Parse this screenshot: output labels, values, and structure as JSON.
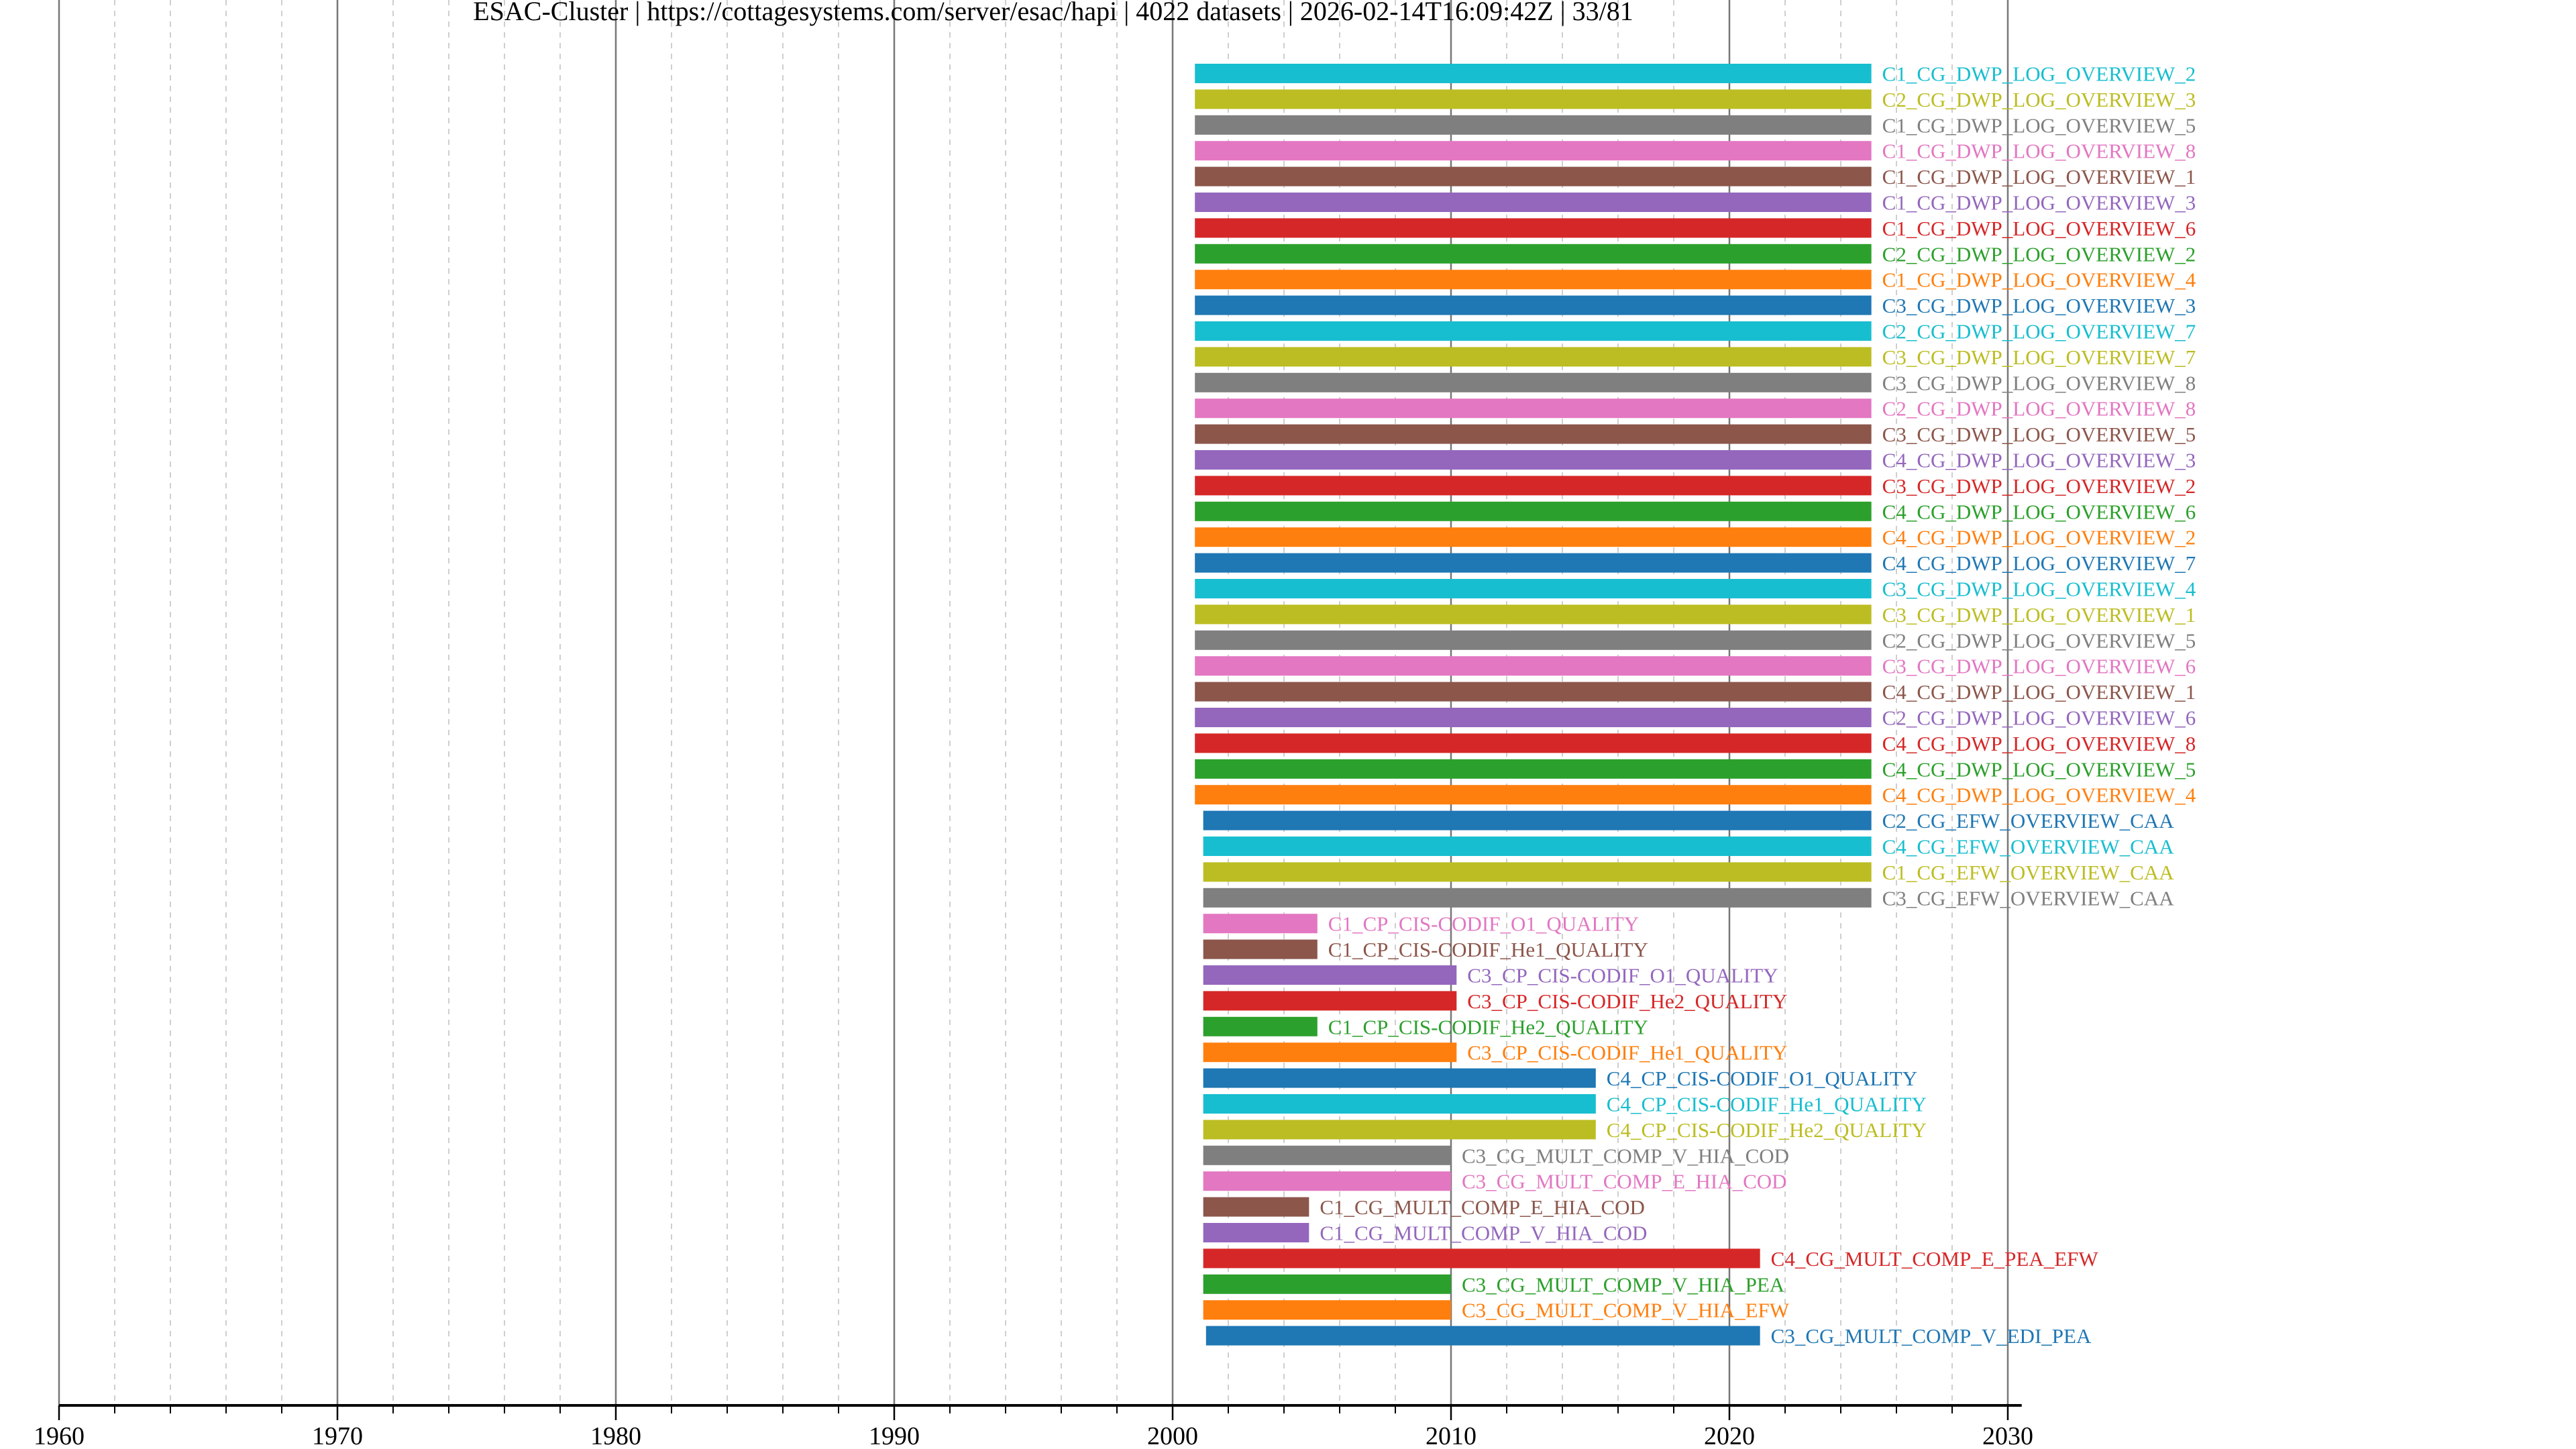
{
  "chart_data": {
    "type": "bar",
    "orientation": "horizontal-timeline",
    "title": "ESAC-Cluster | https://cottagesystems.com/server/esac/hapi | 4022 datasets | 2026-02-14T16:09:42Z | 33/81",
    "xlabel": "",
    "ylabel": "",
    "xlim": [
      1960,
      2030.5
    ],
    "x_ticks": [
      "1960",
      "1970",
      "1980",
      "1990",
      "2000",
      "2010",
      "2020",
      "2030"
    ],
    "x_tick_values": [
      1960,
      1970,
      1980,
      1990,
      2000,
      2010,
      2020,
      2030
    ],
    "minor_grid_step_years": 2,
    "grid": true,
    "legend": "none (labels at bar ends)",
    "palette": [
      "#17becf",
      "#bcbd22",
      "#7f7f7f",
      "#e377c2",
      "#8c564b",
      "#9467bd",
      "#d62728",
      "#2ca02c",
      "#ff7f0e",
      "#1f77b4"
    ],
    "series": [
      {
        "name": "C1_CG_DWP_LOG_OVERVIEW_2",
        "start": 2000.8,
        "stop": 2025.1
      },
      {
        "name": "C2_CG_DWP_LOG_OVERVIEW_3",
        "start": 2000.8,
        "stop": 2025.1
      },
      {
        "name": "C1_CG_DWP_LOG_OVERVIEW_5",
        "start": 2000.8,
        "stop": 2025.1
      },
      {
        "name": "C1_CG_DWP_LOG_OVERVIEW_8",
        "start": 2000.8,
        "stop": 2025.1
      },
      {
        "name": "C1_CG_DWP_LOG_OVERVIEW_1",
        "start": 2000.8,
        "stop": 2025.1
      },
      {
        "name": "C1_CG_DWP_LOG_OVERVIEW_3",
        "start": 2000.8,
        "stop": 2025.1
      },
      {
        "name": "C1_CG_DWP_LOG_OVERVIEW_6",
        "start": 2000.8,
        "stop": 2025.1
      },
      {
        "name": "C2_CG_DWP_LOG_OVERVIEW_2",
        "start": 2000.8,
        "stop": 2025.1
      },
      {
        "name": "C1_CG_DWP_LOG_OVERVIEW_4",
        "start": 2000.8,
        "stop": 2025.1
      },
      {
        "name": "C3_CG_DWP_LOG_OVERVIEW_3",
        "start": 2000.8,
        "stop": 2025.1
      },
      {
        "name": "C2_CG_DWP_LOG_OVERVIEW_7",
        "start": 2000.8,
        "stop": 2025.1
      },
      {
        "name": "C3_CG_DWP_LOG_OVERVIEW_7",
        "start": 2000.8,
        "stop": 2025.1
      },
      {
        "name": "C3_CG_DWP_LOG_OVERVIEW_8",
        "start": 2000.8,
        "stop": 2025.1
      },
      {
        "name": "C2_CG_DWP_LOG_OVERVIEW_8",
        "start": 2000.8,
        "stop": 2025.1
      },
      {
        "name": "C3_CG_DWP_LOG_OVERVIEW_5",
        "start": 2000.8,
        "stop": 2025.1
      },
      {
        "name": "C4_CG_DWP_LOG_OVERVIEW_3",
        "start": 2000.8,
        "stop": 2025.1
      },
      {
        "name": "C3_CG_DWP_LOG_OVERVIEW_2",
        "start": 2000.8,
        "stop": 2025.1
      },
      {
        "name": "C4_CG_DWP_LOG_OVERVIEW_6",
        "start": 2000.8,
        "stop": 2025.1
      },
      {
        "name": "C4_CG_DWP_LOG_OVERVIEW_2",
        "start": 2000.8,
        "stop": 2025.1
      },
      {
        "name": "C4_CG_DWP_LOG_OVERVIEW_7",
        "start": 2000.8,
        "stop": 2025.1
      },
      {
        "name": "C3_CG_DWP_LOG_OVERVIEW_4",
        "start": 2000.8,
        "stop": 2025.1
      },
      {
        "name": "C3_CG_DWP_LOG_OVERVIEW_1",
        "start": 2000.8,
        "stop": 2025.1
      },
      {
        "name": "C2_CG_DWP_LOG_OVERVIEW_5",
        "start": 2000.8,
        "stop": 2025.1
      },
      {
        "name": "C3_CG_DWP_LOG_OVERVIEW_6",
        "start": 2000.8,
        "stop": 2025.1
      },
      {
        "name": "C4_CG_DWP_LOG_OVERVIEW_1",
        "start": 2000.8,
        "stop": 2025.1
      },
      {
        "name": "C2_CG_DWP_LOG_OVERVIEW_6",
        "start": 2000.8,
        "stop": 2025.1
      },
      {
        "name": "C4_CG_DWP_LOG_OVERVIEW_8",
        "start": 2000.8,
        "stop": 2025.1
      },
      {
        "name": "C4_CG_DWP_LOG_OVERVIEW_5",
        "start": 2000.8,
        "stop": 2025.1
      },
      {
        "name": "C4_CG_DWP_LOG_OVERVIEW_4",
        "start": 2000.8,
        "stop": 2025.1
      },
      {
        "name": "C2_CG_EFW_OVERVIEW_CAA",
        "start": 2001.1,
        "stop": 2025.1
      },
      {
        "name": "C4_CG_EFW_OVERVIEW_CAA",
        "start": 2001.1,
        "stop": 2025.1
      },
      {
        "name": "C1_CG_EFW_OVERVIEW_CAA",
        "start": 2001.1,
        "stop": 2025.1
      },
      {
        "name": "C3_CG_EFW_OVERVIEW_CAA",
        "start": 2001.1,
        "stop": 2025.1
      },
      {
        "name": "C1_CP_CIS-CODIF_O1_QUALITY",
        "start": 2001.1,
        "stop": 2005.2
      },
      {
        "name": "C1_CP_CIS-CODIF_He1_QUALITY",
        "start": 2001.1,
        "stop": 2005.2
      },
      {
        "name": "C3_CP_CIS-CODIF_O1_QUALITY",
        "start": 2001.1,
        "stop": 2010.2
      },
      {
        "name": "C3_CP_CIS-CODIF_He2_QUALITY",
        "start": 2001.1,
        "stop": 2010.2
      },
      {
        "name": "C1_CP_CIS-CODIF_He2_QUALITY",
        "start": 2001.1,
        "stop": 2005.2
      },
      {
        "name": "C3_CP_CIS-CODIF_He1_QUALITY",
        "start": 2001.1,
        "stop": 2010.2
      },
      {
        "name": "C4_CP_CIS-CODIF_O1_QUALITY",
        "start": 2001.1,
        "stop": 2015.2
      },
      {
        "name": "C4_CP_CIS-CODIF_He1_QUALITY",
        "start": 2001.1,
        "stop": 2015.2
      },
      {
        "name": "C4_CP_CIS-CODIF_He2_QUALITY",
        "start": 2001.1,
        "stop": 2015.2
      },
      {
        "name": "C3_CG_MULT_COMP_V_HIA_COD",
        "start": 2001.1,
        "stop": 2010.0
      },
      {
        "name": "C3_CG_MULT_COMP_E_HIA_COD",
        "start": 2001.1,
        "stop": 2010.0
      },
      {
        "name": "C1_CG_MULT_COMP_E_HIA_COD",
        "start": 2001.1,
        "stop": 2004.9
      },
      {
        "name": "C1_CG_MULT_COMP_V_HIA_COD",
        "start": 2001.1,
        "stop": 2004.9
      },
      {
        "name": "C4_CG_MULT_COMP_E_PEA_EFW",
        "start": 2001.1,
        "stop": 2021.1
      },
      {
        "name": "C3_CG_MULT_COMP_V_HIA_PEA",
        "start": 2001.1,
        "stop": 2010.0
      },
      {
        "name": "C3_CG_MULT_COMP_V_HIA_EFW",
        "start": 2001.1,
        "stop": 2010.0
      },
      {
        "name": "C3_CG_MULT_COMP_V_EDI_PEA",
        "start": 2001.2,
        "stop": 2021.1
      }
    ]
  }
}
